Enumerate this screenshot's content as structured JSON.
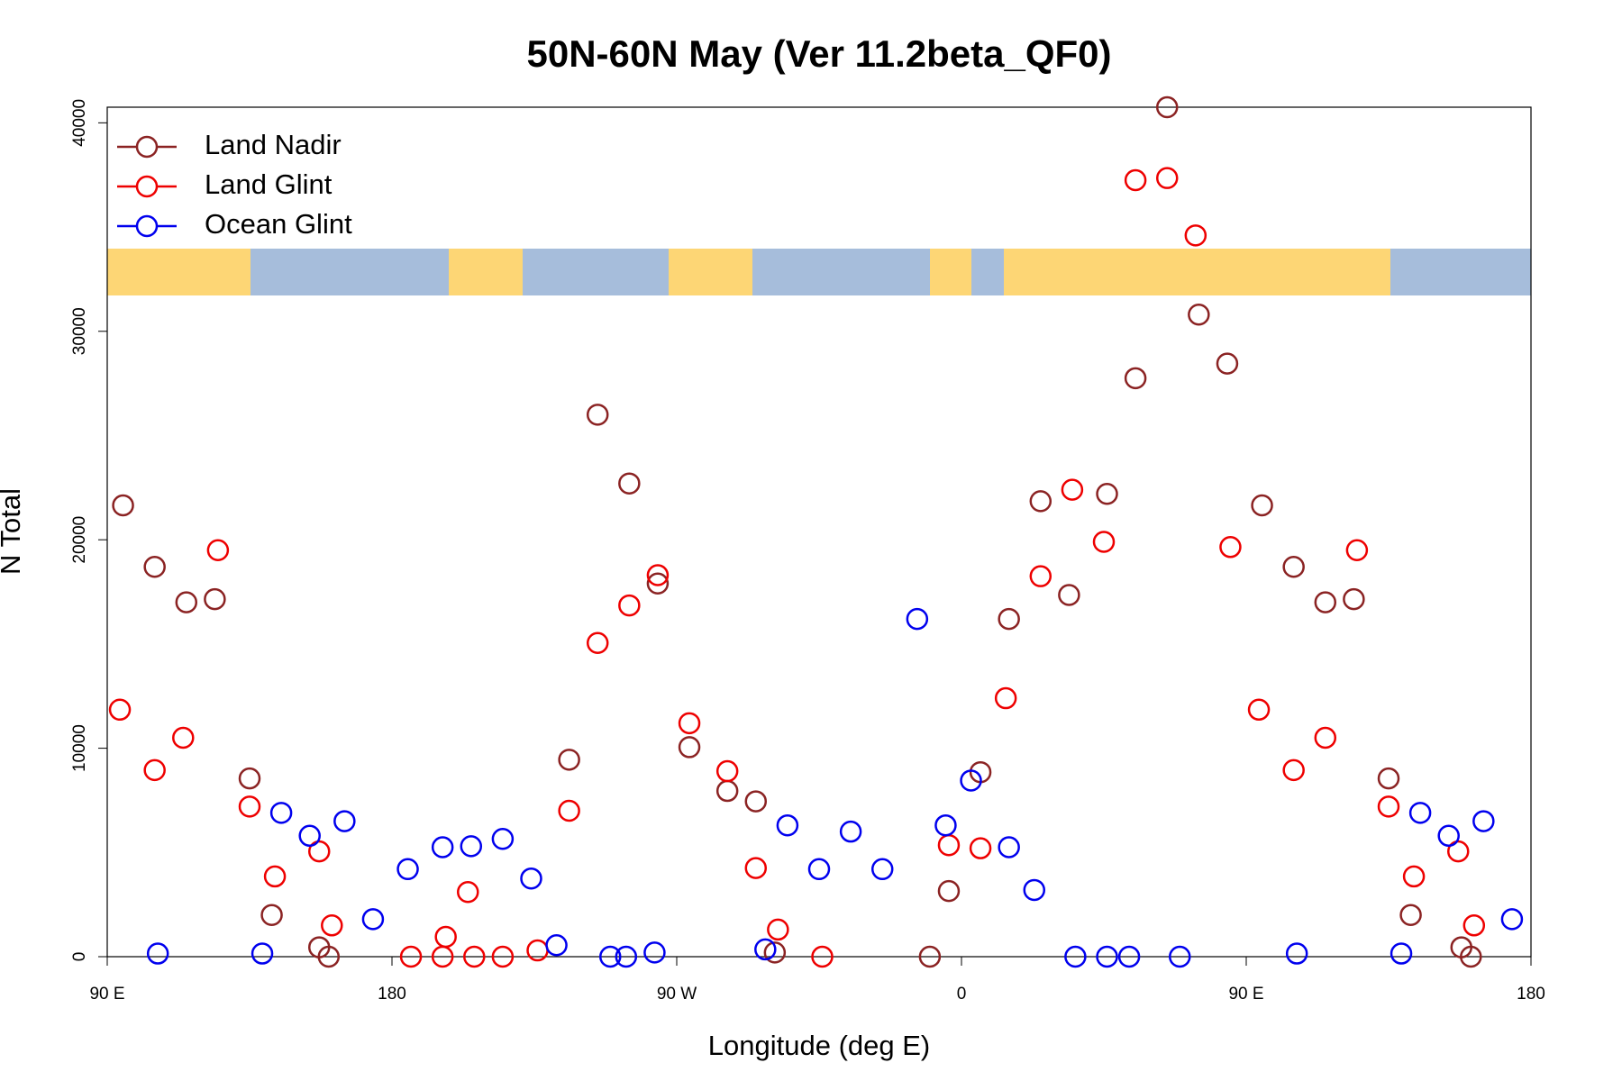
{
  "chart_data": {
    "type": "scatter",
    "title": "50N-60N May (Ver 11.2beta_QF0)",
    "x_label": "Longitude (deg E)",
    "y_label": "N Total",
    "xlim": [
      90,
      540
    ],
    "xticks": [
      {
        "value": 90,
        "label": "90 E"
      },
      180,
      {
        "value": 270,
        "label": "90 W"
      },
      {
        "value": 360,
        "label": "0"
      },
      {
        "value": 450,
        "label": "90 E"
      },
      {
        "value": 540,
        "label": "180"
      }
    ],
    "ylim": [
      0,
      40750
    ],
    "yticks": [
      0,
      10000,
      20000,
      30000,
      40000
    ],
    "legend": "topleft",
    "series": [
      {
        "name": "Land Nadir",
        "color": "#8b2323",
        "x": [
          95,
          105,
          115,
          124,
          135,
          142,
          157,
          160,
          236,
          245,
          255,
          264,
          274,
          286,
          295,
          301,
          350,
          356,
          366,
          375,
          385,
          394,
          406,
          415,
          425,
          435,
          444,
          455,
          465,
          475,
          484,
          495,
          502,
          518,
          521
        ],
        "values": [
          21650,
          18700,
          17000,
          17150,
          8550,
          2000,
          450,
          0,
          9450,
          26000,
          22700,
          17900,
          10050,
          7950,
          7450,
          200,
          0,
          3150,
          8850,
          16200,
          21850,
          17350,
          22200,
          27750,
          40750,
          30800,
          28450,
          21650,
          18700,
          17000,
          17150,
          8550,
          2000,
          450,
          0
        ]
      },
      {
        "name": "Land Glint",
        "color": "#ee0000",
        "x": [
          94,
          105,
          114,
          125,
          135,
          143,
          157,
          161,
          186,
          196,
          197,
          204,
          206,
          215,
          226,
          236,
          245,
          255,
          264,
          274,
          286,
          295,
          302,
          316,
          356,
          366,
          374,
          385,
          395,
          405,
          415,
          425,
          434,
          445,
          454,
          465,
          475,
          485,
          495,
          503,
          517,
          522
        ],
        "values": [
          11850,
          8950,
          10500,
          19500,
          7200,
          3850,
          5050,
          1500,
          0,
          0,
          950,
          3100,
          0,
          0,
          300,
          7000,
          15050,
          16850,
          18300,
          11200,
          8900,
          4250,
          1300,
          0,
          5350,
          5200,
          12400,
          18250,
          22400,
          19900,
          37250,
          37350,
          34600,
          19650,
          11850,
          8950,
          10500,
          19500,
          7200,
          3850,
          5050,
          1500
        ]
      },
      {
        "name": "Ocean Glint",
        "color": "#0000ee",
        "x": [
          106,
          139,
          145,
          154,
          165,
          174,
          185,
          196,
          205,
          215,
          224,
          232,
          249,
          254,
          263,
          298,
          305,
          315,
          325,
          335,
          346,
          355,
          363,
          375,
          383,
          396,
          406,
          413,
          429,
          466,
          499,
          505,
          514,
          525,
          534
        ],
        "values": [
          150,
          150,
          6900,
          5800,
          6500,
          1800,
          4200,
          5250,
          5300,
          5650,
          3750,
          550,
          0,
          0,
          200,
          350,
          6300,
          4200,
          6000,
          4200,
          16200,
          6300,
          8450,
          5250,
          3200,
          0,
          0,
          0,
          0,
          150,
          150,
          6900,
          5800,
          6500,
          1800
        ]
      }
    ]
  }
}
